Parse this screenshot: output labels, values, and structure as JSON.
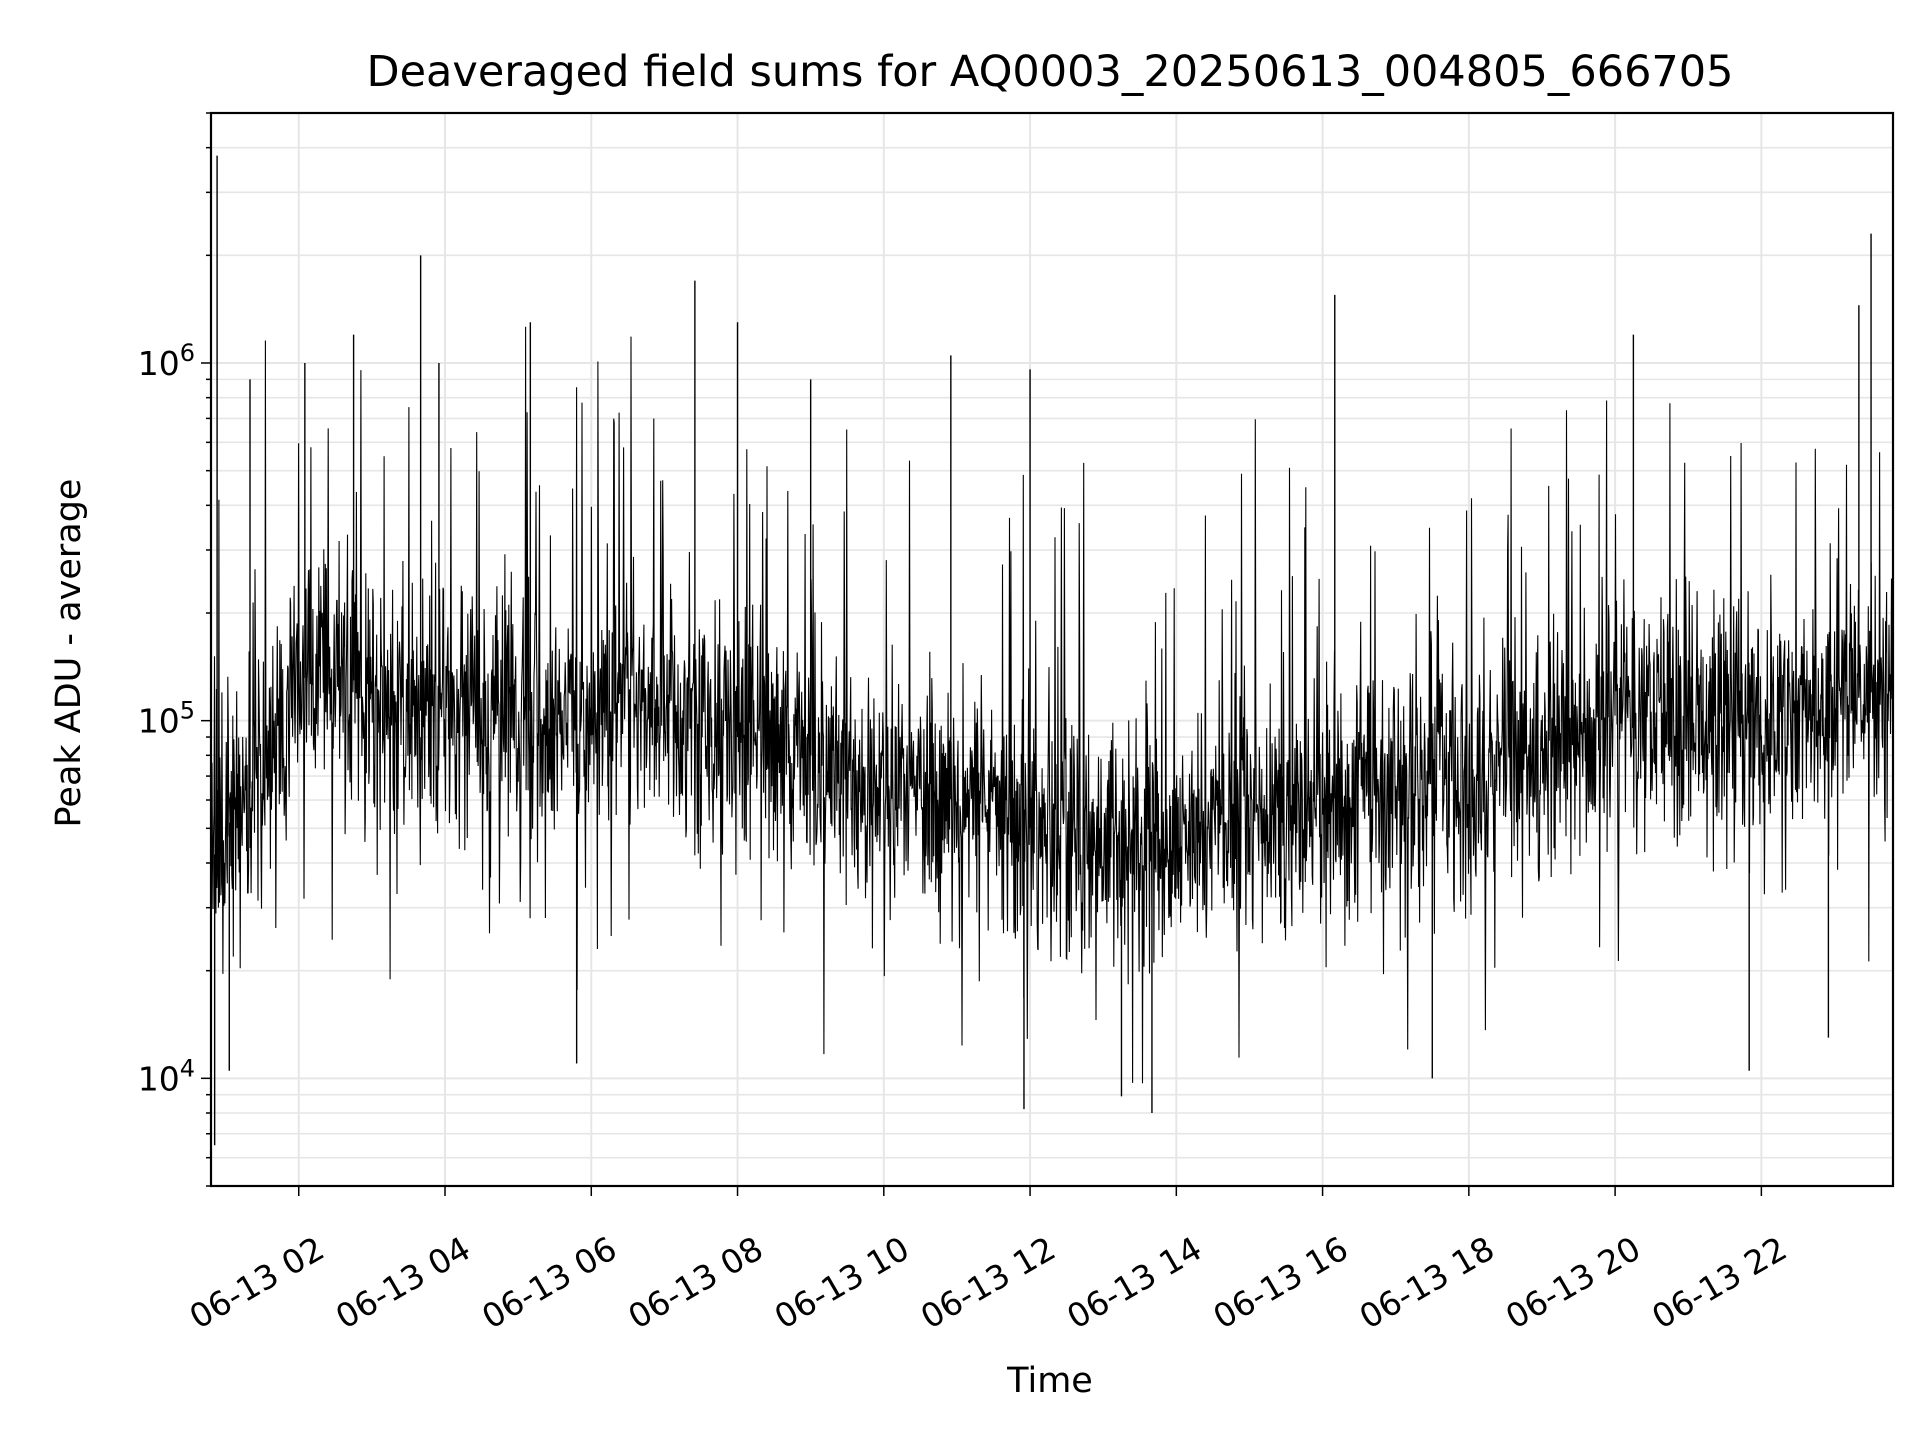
{
  "chart_data": {
    "type": "line",
    "title": "Deaveraged field sums for AQ0003_20250613_004805_666705",
    "xlabel": "Time",
    "ylabel": "Peak ADU - average",
    "y_scale": "log",
    "ylim": [
      5000,
      5000000
    ],
    "xlim": [
      "2025-06-13 00:48",
      "2025-06-13 23:48"
    ],
    "x_ticks": [
      "2025-06-13 02:00",
      "2025-06-13 04:00",
      "2025-06-13 06:00",
      "2025-06-13 08:00",
      "2025-06-13 10:00",
      "2025-06-13 12:00",
      "2025-06-13 14:00",
      "2025-06-13 16:00",
      "2025-06-13 18:00",
      "2025-06-13 20:00",
      "2025-06-13 22:00"
    ],
    "x_tick_labels": [
      "06-13 02",
      "06-13 04",
      "06-13 06",
      "06-13 08",
      "06-13 10",
      "06-13 12",
      "06-13 14",
      "06-13 16",
      "06-13 18",
      "06-13 20",
      "06-13 22"
    ],
    "y_ticks": [
      {
        "value": 10000,
        "base": "10",
        "exp": "4"
      },
      {
        "value": 100000,
        "base": "10",
        "exp": "5"
      },
      {
        "value": 1000000,
        "base": "10",
        "exp": "6"
      }
    ],
    "grid": true,
    "line_color": "#000000",
    "grid_color": "#e6e6e6",
    "series": [
      {
        "x": [
          "2025-06-13 00:48",
          "2025-06-13 01:00",
          "2025-06-13 01:15",
          "2025-06-13 01:30",
          "2025-06-13 01:45",
          "2025-06-13 02:00",
          "2025-06-13 02:30",
          "2025-06-13 03:00",
          "2025-06-13 03:30",
          "2025-06-13 04:00",
          "2025-06-13 04:30",
          "2025-06-13 05:00",
          "2025-06-13 05:30",
          "2025-06-13 06:00",
          "2025-06-13 06:30",
          "2025-06-13 07:00",
          "2025-06-13 07:30",
          "2025-06-13 08:00",
          "2025-06-13 08:30",
          "2025-06-13 09:00",
          "2025-06-13 09:30",
          "2025-06-13 10:00",
          "2025-06-13 10:30",
          "2025-06-13 11:00",
          "2025-06-13 11:30",
          "2025-06-13 12:00",
          "2025-06-13 12:30",
          "2025-06-13 13:00",
          "2025-06-13 13:30",
          "2025-06-13 14:00",
          "2025-06-13 14:30",
          "2025-06-13 15:00",
          "2025-06-13 15:30",
          "2025-06-13 16:00",
          "2025-06-13 16:30",
          "2025-06-13 17:00",
          "2025-06-13 17:30",
          "2025-06-13 18:00",
          "2025-06-13 18:30",
          "2025-06-13 19:00",
          "2025-06-13 19:30",
          "2025-06-13 20:00",
          "2025-06-13 20:30",
          "2025-06-13 21:00",
          "2025-06-13 21:30",
          "2025-06-13 22:00",
          "2025-06-13 22:30",
          "2025-06-13 23:00",
          "2025-06-13 23:30",
          "2025-06-13 23:48"
        ],
        "y": [
          40000,
          50000,
          60000,
          75000,
          95000,
          130000,
          140000,
          120000,
          110000,
          100000,
          105000,
          110000,
          100000,
          95000,
          105000,
          110000,
          100000,
          90000,
          85000,
          80000,
          70000,
          65000,
          62000,
          60000,
          55000,
          50000,
          48000,
          45000,
          47000,
          50000,
          52000,
          55000,
          55000,
          60000,
          62000,
          65000,
          70000,
          72000,
          75000,
          80000,
          85000,
          100000,
          110000,
          105000,
          100000,
          100000,
          105000,
          110000,
          120000,
          125000
        ]
      }
    ],
    "spikes": [
      {
        "x": "2025-06-13 00:53",
        "y": 3800000
      },
      {
        "x": "2025-06-13 00:51",
        "y": 6500
      },
      {
        "x": "2025-06-13 01:03",
        "y": 10500
      },
      {
        "x": "2025-06-13 01:20",
        "y": 900000
      },
      {
        "x": "2025-06-13 02:05",
        "y": 1000000
      },
      {
        "x": "2025-06-13 02:45",
        "y": 1200000
      },
      {
        "x": "2025-06-13 03:40",
        "y": 2000000
      },
      {
        "x": "2025-06-13 03:55",
        "y": 1000000
      },
      {
        "x": "2025-06-13 05:10",
        "y": 1300000
      },
      {
        "x": "2025-06-13 05:48",
        "y": 11000
      },
      {
        "x": "2025-06-13 07:25",
        "y": 1700000
      },
      {
        "x": "2025-06-13 08:00",
        "y": 1300000
      },
      {
        "x": "2025-06-13 09:00",
        "y": 900000
      },
      {
        "x": "2025-06-13 10:55",
        "y": 1050000
      },
      {
        "x": "2025-06-13 11:55",
        "y": 8200
      },
      {
        "x": "2025-06-13 12:00",
        "y": 960000
      },
      {
        "x": "2025-06-13 13:15",
        "y": 8900
      },
      {
        "x": "2025-06-13 13:40",
        "y": 8000
      },
      {
        "x": "2025-06-13 16:10",
        "y": 1550000
      },
      {
        "x": "2025-06-13 17:30",
        "y": 10000
      },
      {
        "x": "2025-06-13 20:15",
        "y": 1200000
      },
      {
        "x": "2025-06-13 21:50",
        "y": 10500
      },
      {
        "x": "2025-06-13 22:55",
        "y": 13000
      },
      {
        "x": "2025-06-13 23:20",
        "y": 1450000
      },
      {
        "x": "2025-06-13 23:30",
        "y": 2300000
      }
    ]
  }
}
